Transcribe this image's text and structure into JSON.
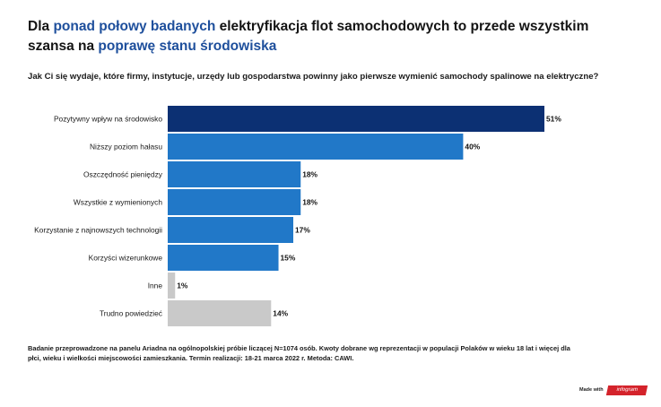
{
  "title": {
    "p1": "Dla ",
    "p2": "ponad połowy badanych",
    "p3": " elektryfikacja flot samochodowych to przede wszystkim szansa na ",
    "p4": "poprawę stanu środowiska"
  },
  "subtitle": "Jak Ci się wydaje, które firmy, instytucje, urzędy lub gospodarstwa powinny jako pierwsze wymienić samochody spalinowe na elektryczne?",
  "footnote": "Badanie przeprowadzone na panelu Ariadna na ogólnopolskiej próbie liczącej N=1074 osób. Kwoty dobrane wg reprezentacji w populacji Polaków w wieku 18 lat i więcej dla płci, wieku i wielkości miejscowości zamieszkania. Termin realizacji:  18-21 marca 2022 r. Metoda: CAWI.",
  "branding": {
    "made_with": "Made with",
    "logo": "infogram"
  },
  "colors": {
    "highlight": "#1e4f9c",
    "top_bar": "#0c3073",
    "bar": "#2178c8",
    "gray_bar": "#c9c9c9"
  },
  "chart_data": {
    "type": "bar",
    "orientation": "horizontal",
    "categories": [
      "Pozytywny wpływ na środowisko",
      "Niższy poziom hałasu",
      "Oszczędność pieniędzy",
      "Wszystkie z wymienionych",
      "Korzystanie z najnowszych technologii",
      "Korzyści wizerunkowe",
      "Inne",
      "Trudno powiedzieć"
    ],
    "values": [
      51,
      40,
      18,
      18,
      17,
      15,
      1,
      14
    ],
    "value_labels": [
      "51%",
      "40%",
      "18%",
      "18%",
      "17%",
      "15%",
      "1%",
      "14%"
    ],
    "bar_colors": [
      "#0c3073",
      "#2178c8",
      "#2178c8",
      "#2178c8",
      "#2178c8",
      "#2178c8",
      "#c9c9c9",
      "#c9c9c9"
    ],
    "xlim": [
      0,
      51
    ],
    "grid": false,
    "legend": "none"
  }
}
